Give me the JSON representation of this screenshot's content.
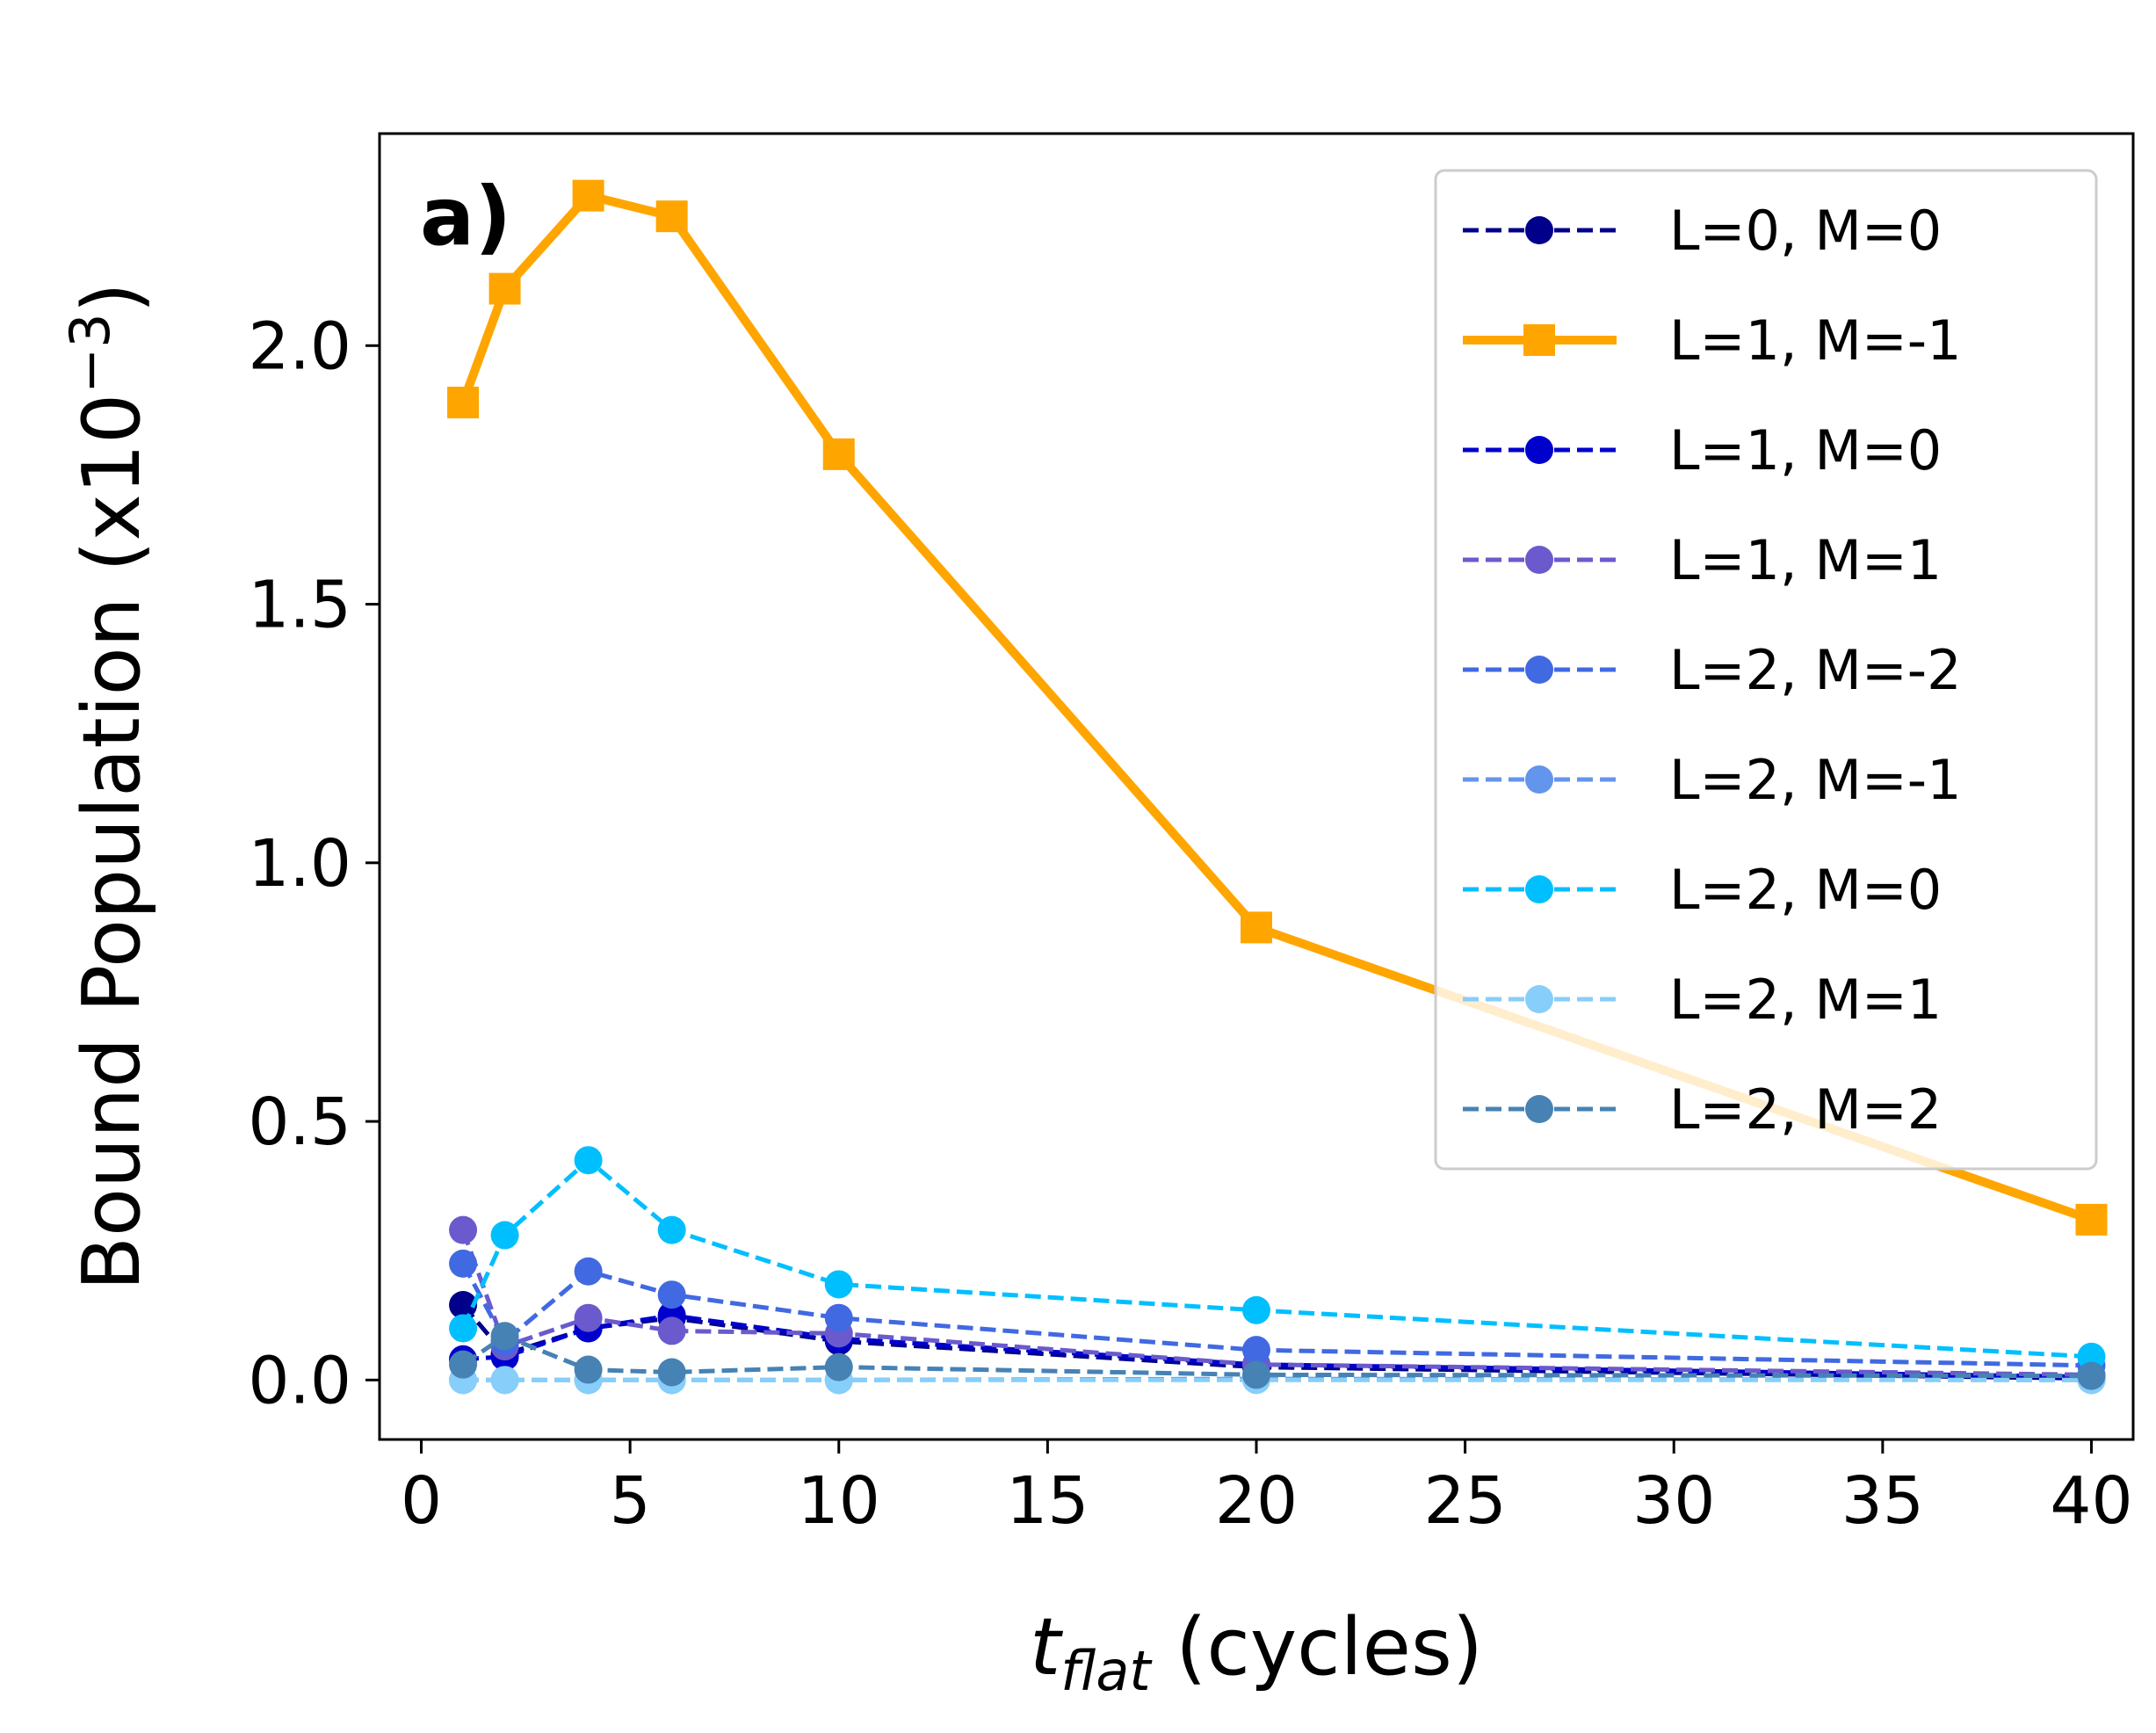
{
  "chart_data": {
    "type": "line",
    "panel_label": "a)",
    "xlabel": {
      "italic": "t",
      "subscript": "flat",
      "rest": " (cycles)"
    },
    "ylabel": {
      "base": "Bound Population (x10",
      "superscript": "−3",
      "close": ")"
    },
    "xlim": [
      -1,
      41
    ],
    "ylim": [
      -0.115,
      2.41
    ],
    "xticks": [
      0,
      5,
      10,
      15,
      20,
      25,
      30,
      35,
      40
    ],
    "xtick_labels": [
      "0",
      "5",
      "10",
      "15",
      "20",
      "25",
      "30",
      "35",
      "40"
    ],
    "yticks": [
      0.0,
      0.5,
      1.0,
      1.5,
      2.0
    ],
    "ytick_labels": [
      "0.0",
      "0.5",
      "1.0",
      "1.5",
      "2.0"
    ],
    "grid": false,
    "legend_position": "upper right",
    "x": [
      1,
      2,
      4,
      6,
      10,
      20,
      40
    ],
    "series": [
      {
        "name": "L=0, M=0",
        "color": "#00008B",
        "style": "dashed",
        "marker": "circle",
        "values": [
          0.145,
          0.05,
          0.1,
          0.12,
          0.075,
          0.025,
          0.003
        ]
      },
      {
        "name": "L=1, M=-1",
        "color": "#FFA500",
        "style": "solid",
        "marker": "square",
        "values": [
          1.89,
          2.11,
          2.29,
          2.25,
          1.79,
          0.875,
          0.31
        ]
      },
      {
        "name": "L=1, M=0",
        "color": "#0000CD",
        "style": "dashed",
        "marker": "circle",
        "values": [
          0.04,
          0.045,
          0.1,
          0.125,
          0.08,
          0.03,
          0.006
        ]
      },
      {
        "name": "L=1, M=1",
        "color": "#6A5ACD",
        "style": "dashed",
        "marker": "circle",
        "values": [
          0.29,
          0.065,
          0.12,
          0.095,
          0.09,
          0.03,
          0.01
        ]
      },
      {
        "name": "L=2, M=-2",
        "color": "#4169E1",
        "style": "dashed",
        "marker": "circle",
        "values": [
          0.225,
          0.075,
          0.21,
          0.165,
          0.12,
          0.058,
          0.028
        ]
      },
      {
        "name": "L=2, M=-1",
        "color": "#6495ED",
        "style": "dashed",
        "marker": "circle",
        "values": [
          0.0,
          0.0,
          0.0,
          0.0,
          0.0,
          0.002,
          0.0
        ]
      },
      {
        "name": "L=2, M=0",
        "color": "#00BFFF",
        "style": "dashed",
        "marker": "circle",
        "values": [
          0.1,
          0.28,
          0.425,
          0.29,
          0.185,
          0.135,
          0.045
        ]
      },
      {
        "name": "L=2, M=1",
        "color": "#87CEFA",
        "style": "dashed",
        "marker": "circle",
        "values": [
          0.0,
          0.0,
          0.0,
          0.0,
          0.0,
          0.0,
          0.0
        ]
      },
      {
        "name": "L=2, M=2",
        "color": "#4682B4",
        "style": "dashed",
        "marker": "circle",
        "values": [
          0.03,
          0.085,
          0.02,
          0.015,
          0.025,
          0.01,
          0.008
        ]
      }
    ]
  }
}
